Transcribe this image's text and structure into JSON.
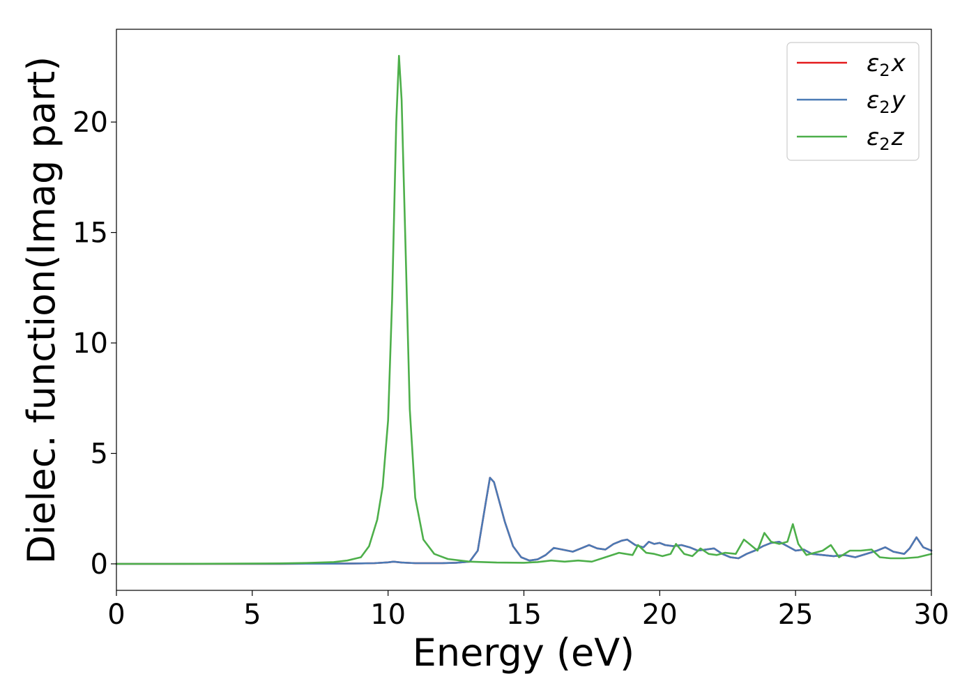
{
  "chart_data": {
    "type": "line",
    "xlabel": "Energy (eV)",
    "ylabel": "Dielec. function(Imag part)",
    "xlim": [
      0,
      30
    ],
    "ylim": [
      -1.2,
      24.2
    ],
    "xticks": [
      0,
      5,
      10,
      15,
      20,
      25,
      30
    ],
    "yticks": [
      0,
      5,
      10,
      15,
      20
    ],
    "grid": false,
    "legend_position": "top-right",
    "series": [
      {
        "name": "ε2x",
        "legend": {
          "base": "ε",
          "sub": "2",
          "suffix": "x"
        },
        "color": "#e41a1c",
        "x": [
          0,
          2,
          4,
          6,
          7,
          8,
          9,
          9.5,
          10,
          10.2,
          10.5,
          11,
          12,
          12.5,
          13,
          13.3,
          13.6,
          13.75,
          13.9,
          14.1,
          14.3,
          14.6,
          14.9,
          15.2,
          15.5,
          15.8,
          16.1,
          16.4,
          16.8,
          17.1,
          17.4,
          17.7,
          18.0,
          18.3,
          18.6,
          18.8,
          19.1,
          19.4,
          19.6,
          19.8,
          20.0,
          20.2,
          20.5,
          20.8,
          21.1,
          21.4,
          21.7,
          22.0,
          22.3,
          22.6,
          22.9,
          23.2,
          23.5,
          23.8,
          24.1,
          24.4,
          24.7,
          25.0,
          25.3,
          25.6,
          26.0,
          26.4,
          26.8,
          27.2,
          27.6,
          28.0,
          28.3,
          28.6,
          29.0,
          29.2,
          29.45,
          29.7,
          30.0
        ],
        "y": [
          0,
          0,
          0,
          0,
          0.01,
          0.01,
          0.02,
          0.03,
          0.07,
          0.1,
          0.06,
          0.03,
          0.03,
          0.05,
          0.1,
          0.6,
          2.8,
          3.9,
          3.7,
          2.8,
          1.9,
          0.8,
          0.3,
          0.15,
          0.2,
          0.4,
          0.72,
          0.65,
          0.55,
          0.7,
          0.85,
          0.7,
          0.65,
          0.9,
          1.05,
          1.1,
          0.85,
          0.75,
          1.0,
          0.9,
          0.95,
          0.85,
          0.8,
          0.85,
          0.75,
          0.6,
          0.65,
          0.7,
          0.45,
          0.3,
          0.25,
          0.45,
          0.6,
          0.8,
          0.95,
          1.0,
          0.8,
          0.6,
          0.65,
          0.45,
          0.4,
          0.35,
          0.4,
          0.3,
          0.45,
          0.6,
          0.75,
          0.55,
          0.45,
          0.7,
          1.2,
          0.75,
          0.6
        ]
      },
      {
        "name": "ε2y",
        "legend": {
          "base": "ε",
          "sub": "2",
          "suffix": "y"
        },
        "color": "#4a7ab5",
        "x": [
          0,
          2,
          4,
          6,
          7,
          8,
          9,
          9.5,
          10,
          10.2,
          10.5,
          11,
          12,
          12.5,
          13,
          13.3,
          13.6,
          13.75,
          13.9,
          14.1,
          14.3,
          14.6,
          14.9,
          15.2,
          15.5,
          15.8,
          16.1,
          16.4,
          16.8,
          17.1,
          17.4,
          17.7,
          18.0,
          18.3,
          18.6,
          18.8,
          19.1,
          19.4,
          19.6,
          19.8,
          20.0,
          20.2,
          20.5,
          20.8,
          21.1,
          21.4,
          21.7,
          22.0,
          22.3,
          22.6,
          22.9,
          23.2,
          23.5,
          23.8,
          24.1,
          24.4,
          24.7,
          25.0,
          25.3,
          25.6,
          26.0,
          26.4,
          26.8,
          27.2,
          27.6,
          28.0,
          28.3,
          28.6,
          29.0,
          29.2,
          29.45,
          29.7,
          30.0
        ],
        "y": [
          0,
          0,
          0,
          0,
          0.01,
          0.01,
          0.02,
          0.03,
          0.07,
          0.1,
          0.06,
          0.03,
          0.03,
          0.05,
          0.1,
          0.6,
          2.8,
          3.9,
          3.7,
          2.8,
          1.9,
          0.8,
          0.3,
          0.15,
          0.2,
          0.4,
          0.72,
          0.65,
          0.55,
          0.7,
          0.85,
          0.7,
          0.65,
          0.9,
          1.05,
          1.1,
          0.85,
          0.75,
          1.0,
          0.9,
          0.95,
          0.85,
          0.8,
          0.85,
          0.75,
          0.6,
          0.65,
          0.7,
          0.45,
          0.3,
          0.25,
          0.45,
          0.6,
          0.8,
          0.95,
          1.0,
          0.8,
          0.6,
          0.65,
          0.45,
          0.4,
          0.35,
          0.4,
          0.3,
          0.45,
          0.6,
          0.75,
          0.55,
          0.45,
          0.7,
          1.2,
          0.75,
          0.6
        ]
      },
      {
        "name": "ε2z",
        "legend": {
          "base": "ε",
          "sub": "2",
          "suffix": "z"
        },
        "color": "#4daf4a",
        "x": [
          0,
          2,
          4,
          6,
          7,
          8,
          8.5,
          9,
          9.3,
          9.6,
          9.8,
          10.0,
          10.15,
          10.3,
          10.4,
          10.5,
          10.65,
          10.8,
          11.0,
          11.3,
          11.7,
          12.2,
          13,
          14,
          15,
          15.5,
          16.0,
          16.5,
          17.0,
          17.5,
          18.0,
          18.5,
          19.0,
          19.2,
          19.5,
          19.8,
          20.1,
          20.4,
          20.6,
          20.9,
          21.2,
          21.5,
          21.8,
          22.1,
          22.4,
          22.8,
          23.1,
          23.3,
          23.6,
          23.85,
          24.1,
          24.4,
          24.7,
          24.9,
          25.1,
          25.4,
          25.7,
          26.0,
          26.3,
          26.6,
          27.0,
          27.4,
          27.8,
          28.1,
          28.5,
          29.0,
          29.5,
          30.0
        ],
        "y": [
          0,
          0,
          0.01,
          0.02,
          0.04,
          0.08,
          0.15,
          0.3,
          0.8,
          2.0,
          3.5,
          6.5,
          12.0,
          20.0,
          23.0,
          21.0,
          14.0,
          7.0,
          3.0,
          1.1,
          0.45,
          0.22,
          0.1,
          0.06,
          0.05,
          0.08,
          0.15,
          0.1,
          0.15,
          0.1,
          0.3,
          0.5,
          0.4,
          0.85,
          0.5,
          0.45,
          0.35,
          0.45,
          0.9,
          0.45,
          0.35,
          0.7,
          0.45,
          0.4,
          0.5,
          0.45,
          1.1,
          0.9,
          0.6,
          1.4,
          1.0,
          0.9,
          1.0,
          1.8,
          0.9,
          0.4,
          0.5,
          0.6,
          0.85,
          0.3,
          0.6,
          0.6,
          0.65,
          0.3,
          0.25,
          0.25,
          0.3,
          0.45
        ]
      }
    ]
  }
}
